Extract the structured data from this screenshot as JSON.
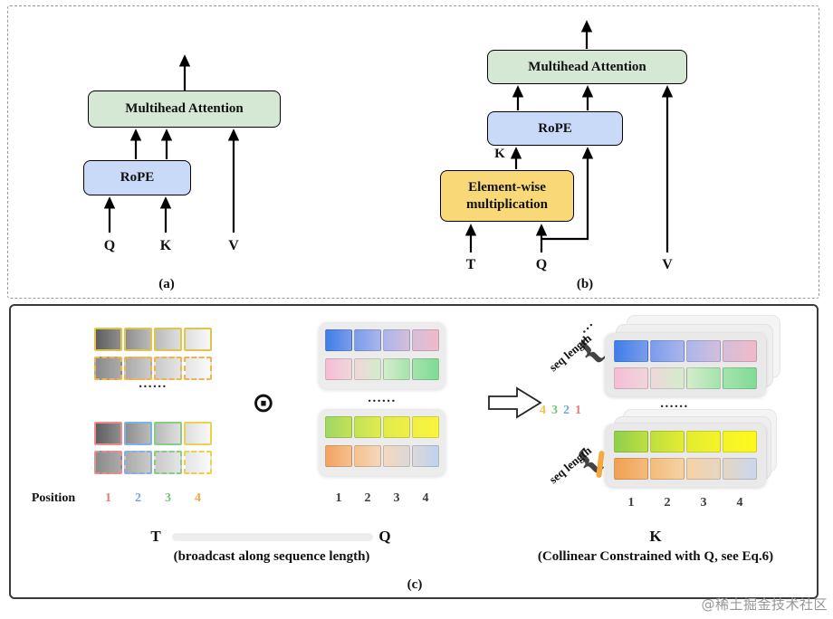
{
  "panel_a": {
    "caption": "(a)",
    "mha_label": "Multihead Attention",
    "rope_label": "RoPE",
    "input_q": "Q",
    "input_k": "K",
    "input_v": "V"
  },
  "panel_b": {
    "caption": "(b)",
    "mha_label": "Multihead Attention",
    "rope_label": "RoPE",
    "ewm_label_line1": "Element-wise",
    "ewm_label_line2": "multiplication",
    "k_label": "K",
    "input_t": "T",
    "input_q": "Q",
    "input_v": "V"
  },
  "panel_c": {
    "caption": "(c)",
    "odot": "⊙",
    "dots": "......",
    "diag_dots": "...",
    "brace": "{",
    "position_label": "Position",
    "seq_length_label": "seq length",
    "t_label": "T",
    "q_label": "Q",
    "k_label": "K",
    "broadcast_caption": "(broadcast along sequence length)",
    "collinear_caption": "(Collinear Constrained with Q, see Eq.6)",
    "t_numbers": [
      {
        "text": "1",
        "color": "#e87a7a"
      },
      {
        "text": "2",
        "color": "#6fa8dc"
      },
      {
        "text": "3",
        "color": "#76c47a"
      },
      {
        "text": "4",
        "color": "#f2a64e"
      }
    ],
    "q_numbers": [
      "1",
      "2",
      "3",
      "4"
    ],
    "k_numbers": [
      "1",
      "2",
      "3",
      "4"
    ],
    "seq_numbers": [
      {
        "text": "4",
        "color": "#f2c14e"
      },
      {
        "text": "3",
        "color": "#76c47a"
      },
      {
        "text": "2",
        "color": "#6fa8dc"
      },
      {
        "text": "1",
        "color": "#e87a7a"
      }
    ],
    "tiles": {
      "t_rows": [
        {
          "stops": [
            "#5e5e5e",
            "#8e8e8e",
            "#bababa",
            "#dedede",
            "#f8f8f8"
          ],
          "borders": [
            "#dec64e",
            "#dec64e",
            "#dec64e",
            "#dec64e"
          ],
          "dashed": false
        },
        {
          "stops": [
            "#8a8a8a",
            "#aaaaaa",
            "#cacaca",
            "#e4e4e4",
            "#fafafa"
          ],
          "borders": [
            "#f0b44e",
            "#f0b44e",
            "#f0b44e",
            "#f0b44e"
          ],
          "dashed": true
        },
        {
          "stops": [
            "#5e5e5e",
            "#8e8e8e",
            "#bababa",
            "#dedede",
            "#f8f8f8"
          ],
          "borders": [
            "#ed8b8b",
            "#7fb1e8",
            "#86ce86",
            "#eed04e"
          ],
          "dashed": false
        },
        {
          "stops": [
            "#8a8a8a",
            "#aaaaaa",
            "#cacaca",
            "#e4e4e4",
            "#fafafa"
          ],
          "borders": [
            "#ed8b8b",
            "#7fb1e8",
            "#86ce86",
            "#eed04e"
          ],
          "dashed": true
        }
      ],
      "q_rows": [
        {
          "stops": [
            "#3e7ee9",
            "#7b9ceb",
            "#aab6ec",
            "#d4beda",
            "#f1bac7"
          ]
        },
        {
          "stops": [
            "#f5bdd7",
            "#efd6da",
            "#d4eccc",
            "#a5e3ac",
            "#7fdb96"
          ]
        },
        {
          "stops": [
            "#9ed766",
            "#c4e257",
            "#dfeb4d",
            "#f0ef45",
            "#f9f53c"
          ]
        },
        {
          "stops": [
            "#f2a360",
            "#f5c18f",
            "#f3d8bd",
            "#dcd8da",
            "#bed2ee"
          ]
        }
      ],
      "k_top_rows": [
        {
          "stops": [
            "#3e7ee9",
            "#7b9ceb",
            "#aab6ec",
            "#d4beda",
            "#f1bac7"
          ]
        },
        {
          "stops": [
            "#f5bdd7",
            "#efd6da",
            "#d4eccc",
            "#a5e3ac",
            "#7fdb96"
          ]
        }
      ],
      "k_bottom_rows": [
        {
          "stops": [
            "#8fcf4f",
            "#bfdf3f",
            "#e2ec30",
            "#f4f328",
            "#fdf91f"
          ]
        },
        {
          "stops": [
            "#f1a052",
            "#f4bb7d",
            "#f6d2a4",
            "#e6d6c2",
            "#c7d7ee"
          ]
        }
      ]
    }
  },
  "watermark": "@稀土掘金技术社区",
  "colors": {
    "mha_fill": "#d5e8d4",
    "rope_fill": "#c9daf8",
    "ewm_fill": "#f9d878",
    "card_fill": "#ececec",
    "arrow": "#000000"
  }
}
